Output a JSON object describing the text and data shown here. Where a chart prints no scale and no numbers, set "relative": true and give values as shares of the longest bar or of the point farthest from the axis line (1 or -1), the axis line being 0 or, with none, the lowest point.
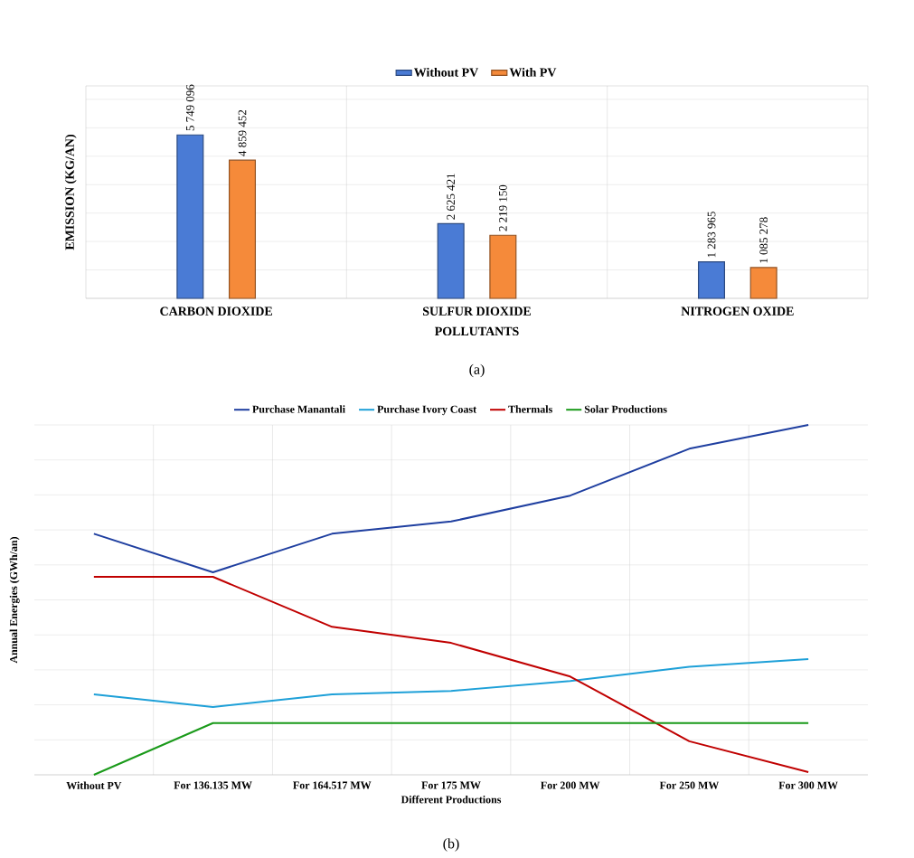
{
  "chart_data": [
    {
      "type": "bar",
      "categories": [
        "CARBON DIOXIDE",
        "SULFUR DIOXIDE",
        "NITROGEN OXIDE"
      ],
      "xlabel": "POLLUTANTS",
      "ylabel": "EMISSION (KG/AN)",
      "legend": "top",
      "grid": true,
      "annotations": [
        "(a)"
      ],
      "series": [
        {
          "name": "Without PV",
          "color": "#4a7bd5",
          "values": [
            5749096,
            2625421,
            1283965
          ],
          "value_labels": [
            "5 749 096",
            "2 625 421",
            "1 283 965"
          ]
        },
        {
          "name": "With PV",
          "color": "#f58a3a",
          "values": [
            4859452,
            2219150,
            1085278
          ],
          "value_labels": [
            "4 859 452",
            "2 219 150",
            "1 085 278"
          ]
        }
      ]
    },
    {
      "type": "line",
      "relative": true,
      "categories": [
        "Without PV",
        "For 136.135 MW",
        "For 164.517 MW",
        "For 175 MW",
        "For 200 MW",
        "For 250 MW",
        "For 300 MW"
      ],
      "xlabel": "Different Productions",
      "ylabel": "Annual Energies (GWh/an)",
      "legend": "top",
      "grid": true,
      "annotations": [
        "(b)"
      ],
      "series": [
        {
          "name": "Purchase Manantali",
          "color": "#1f3fa0",
          "values": [
            0.689,
            0.579,
            0.689,
            0.724,
            0.798,
            0.932,
            1
          ]
        },
        {
          "name": "Purchase Ivory Coast",
          "color": "#1ea0d8",
          "values": [
            0.23,
            0.194,
            0.23,
            0.24,
            0.268,
            0.309,
            0.331
          ]
        },
        {
          "name": "Thermals",
          "color": "#c00000",
          "values": [
            0.566,
            0.566,
            0.423,
            0.377,
            0.281,
            0.096,
            0.008
          ]
        },
        {
          "name": "Solar Productions",
          "color": "#1a9a1a",
          "values": [
            0,
            0.148,
            0.148,
            0.148,
            0.148,
            0.148,
            0.148
          ]
        }
      ]
    }
  ]
}
